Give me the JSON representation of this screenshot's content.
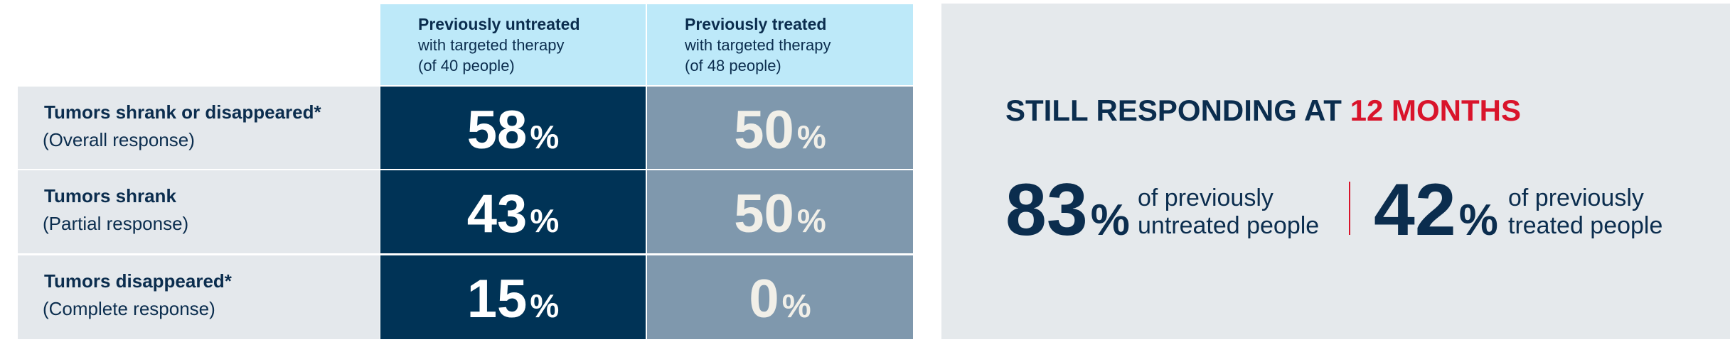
{
  "table": {
    "columns": [
      {
        "title": "Previously untreated",
        "lines": [
          "with targeted therapy",
          "(of 40 people)"
        ]
      },
      {
        "title": "Previously treated",
        "lines": [
          "with targeted therapy",
          "(of 48 people)"
        ]
      }
    ],
    "rows": [
      {
        "label": "Tumors shrank or disappeared*",
        "sublabel": "(Overall response)",
        "cells": [
          {
            "value": 58,
            "unit": "%"
          },
          {
            "value": 50,
            "unit": "%"
          }
        ]
      },
      {
        "label": "Tumors shrank",
        "sublabel": "(Partial response)",
        "cells": [
          {
            "value": 43,
            "unit": "%"
          },
          {
            "value": 50,
            "unit": "%"
          }
        ]
      },
      {
        "label": "Tumors disappeared*",
        "sublabel": "(Complete response)",
        "cells": [
          {
            "value": 15,
            "unit": "%"
          },
          {
            "value": 0,
            "unit": "%"
          }
        ]
      }
    ]
  },
  "panel": {
    "heading": "STILL RESPONDING AT ",
    "heading_highlight": "12 MONTHS",
    "stats": [
      {
        "value": 83,
        "unit": "%",
        "lines": [
          "of previously",
          "untreated people"
        ]
      },
      {
        "value": 42,
        "unit": "%",
        "lines": [
          "of previously",
          "treated people"
        ]
      }
    ]
  }
}
